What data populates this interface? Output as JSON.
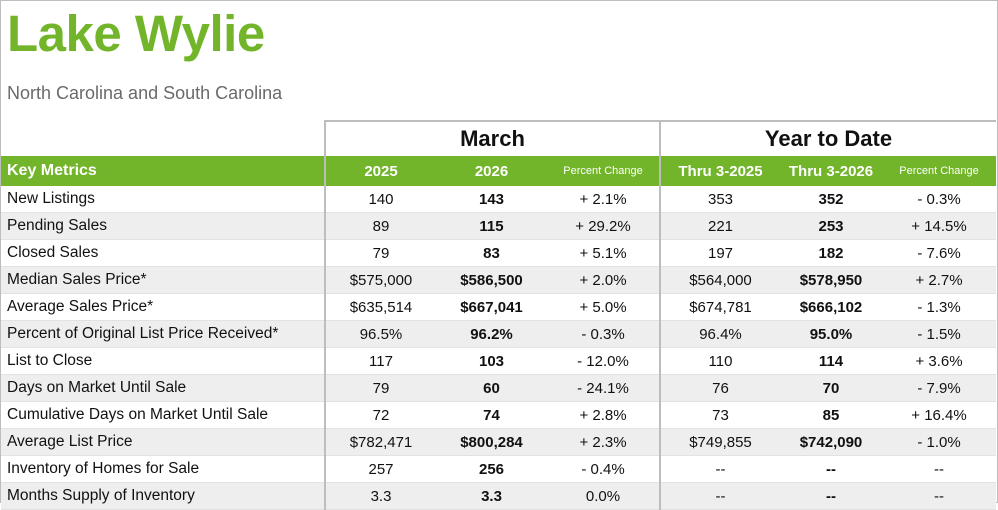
{
  "title": "Lake Wylie",
  "subtitle": "North Carolina and South Carolina",
  "colors": {
    "accent": "#72b52a",
    "subtitle": "#6a6a6a",
    "stripe": "#eeeeee"
  },
  "groups": {
    "march": "March",
    "ytd": "Year to Date"
  },
  "columns": [
    "Key Metrics",
    "2025",
    "2026",
    "Percent Change",
    "Thru 3-2025",
    "Thru 3-2026",
    "Percent Change"
  ],
  "rows": [
    [
      "New Listings",
      "140",
      "143",
      "+ 2.1%",
      "353",
      "352",
      "- 0.3%"
    ],
    [
      "Pending Sales",
      "89",
      "115",
      "+ 29.2%",
      "221",
      "253",
      "+ 14.5%"
    ],
    [
      "Closed Sales",
      "79",
      "83",
      "+ 5.1%",
      "197",
      "182",
      "- 7.6%"
    ],
    [
      "Median Sales Price*",
      "$575,000",
      "$586,500",
      "+ 2.0%",
      "$564,000",
      "$578,950",
      "+ 2.7%"
    ],
    [
      "Average Sales Price*",
      "$635,514",
      "$667,041",
      "+ 5.0%",
      "$674,781",
      "$666,102",
      "- 1.3%"
    ],
    [
      "Percent of Original List Price Received*",
      "96.5%",
      "96.2%",
      "- 0.3%",
      "96.4%",
      "95.0%",
      "- 1.5%"
    ],
    [
      "List to Close",
      "117",
      "103",
      "- 12.0%",
      "110",
      "114",
      "+ 3.6%"
    ],
    [
      "Days on Market Until Sale",
      "79",
      "60",
      "- 24.1%",
      "76",
      "70",
      "- 7.9%"
    ],
    [
      "Cumulative Days on Market Until Sale",
      "72",
      "74",
      "+ 2.8%",
      "73",
      "85",
      "+ 16.4%"
    ],
    [
      "Average List Price",
      "$782,471",
      "$800,284",
      "+ 2.3%",
      "$749,855",
      "$742,090",
      "- 1.0%"
    ],
    [
      "Inventory of Homes for Sale",
      "257",
      "256",
      "- 0.4%",
      "--",
      "--",
      "--"
    ],
    [
      "Months Supply of Inventory",
      "3.3",
      "3.3",
      "0.0%",
      "--",
      "--",
      "--"
    ]
  ]
}
